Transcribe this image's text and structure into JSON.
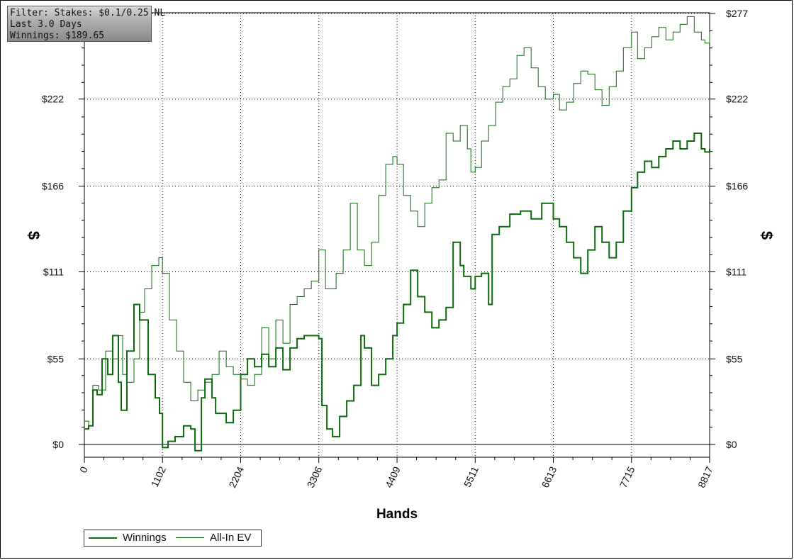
{
  "info_box": {
    "line1": "Filter: Stakes: $0.1/0.25 NL",
    "line2": "Last 3.0 Days",
    "line3": "Winnings: $189.65"
  },
  "chart_data": {
    "type": "line",
    "xlabel": "Hands",
    "ylabel": "$",
    "ylabel_right": "$",
    "xlim": [
      0,
      8817
    ],
    "ylim": [
      -8,
      277
    ],
    "x_ticks": [
      "0",
      "1102",
      "2204",
      "3306",
      "4409",
      "5511",
      "6613",
      "7715",
      "8817"
    ],
    "y_ticks": [
      "$0",
      "$55",
      "$111",
      "$166",
      "$222",
      "$277"
    ],
    "y_tick_values": [
      0,
      55,
      111,
      166,
      222,
      277
    ],
    "x_tick_values": [
      0,
      1102,
      2204,
      3306,
      4409,
      5511,
      6613,
      7715,
      8817
    ],
    "grid": true,
    "legend_position": "bottom-left",
    "series": [
      {
        "name": "Winnings",
        "color": "#0b6b0b",
        "x": [
          0,
          60,
          120,
          180,
          250,
          330,
          400,
          480,
          520,
          600,
          700,
          780,
          900,
          1000,
          1060,
          1102,
          1180,
          1280,
          1400,
          1500,
          1560,
          1650,
          1700,
          1800,
          1850,
          2000,
          2100,
          2204,
          2300,
          2400,
          2500,
          2600,
          2700,
          2800,
          2900,
          3000,
          3100,
          3200,
          3306,
          3350,
          3420,
          3500,
          3600,
          3700,
          3800,
          3900,
          3950,
          4050,
          4150,
          4250,
          4350,
          4409,
          4500,
          4600,
          4700,
          4800,
          4900,
          5000,
          5100,
          5200,
          5300,
          5350,
          5450,
          5511,
          5600,
          5700,
          5750,
          5850,
          6000,
          6150,
          6300,
          6450,
          6613,
          6700,
          6800,
          6900,
          7000,
          7100,
          7200,
          7300,
          7400,
          7500,
          7600,
          7715,
          7800,
          7900,
          8000,
          8100,
          8200,
          8300,
          8400,
          8500,
          8600,
          8700,
          8750,
          8817
        ],
        "y": [
          10,
          12,
          35,
          32,
          55,
          45,
          70,
          40,
          22,
          60,
          90,
          80,
          45,
          30,
          20,
          -2,
          2,
          5,
          12,
          10,
          -4,
          30,
          42,
          30,
          20,
          14,
          22,
          45,
          55,
          50,
          58,
          50,
          62,
          48,
          62,
          68,
          70,
          70,
          68,
          25,
          10,
          5,
          18,
          28,
          38,
          70,
          62,
          38,
          45,
          55,
          70,
          78,
          90,
          112,
          95,
          85,
          75,
          80,
          88,
          130,
          115,
          108,
          100,
          108,
          110,
          90,
          135,
          140,
          148,
          150,
          145,
          155,
          145,
          140,
          130,
          120,
          110,
          125,
          140,
          130,
          120,
          130,
          150,
          165,
          175,
          182,
          178,
          185,
          190,
          195,
          190,
          195,
          200,
          190,
          188,
          190
        ]
      },
      {
        "name": "All-In EV",
        "color": "#0b6b0b",
        "x": [
          0,
          60,
          120,
          200,
          300,
          400,
          480,
          540,
          600,
          700,
          780,
          850,
          950,
          1050,
          1102,
          1200,
          1300,
          1400,
          1500,
          1600,
          1700,
          1800,
          1900,
          2000,
          2100,
          2204,
          2300,
          2400,
          2500,
          2600,
          2700,
          2800,
          2900,
          3000,
          3100,
          3200,
          3306,
          3400,
          3450,
          3550,
          3650,
          3750,
          3850,
          3950,
          4050,
          4150,
          4250,
          4350,
          4409,
          4500,
          4600,
          4700,
          4800,
          4900,
          5000,
          5100,
          5200,
          5300,
          5400,
          5450,
          5511,
          5600,
          5700,
          5800,
          5900,
          6000,
          6100,
          6200,
          6300,
          6400,
          6500,
          6613,
          6700,
          6800,
          6900,
          7000,
          7100,
          7200,
          7300,
          7400,
          7500,
          7600,
          7715,
          7800,
          7900,
          8000,
          8100,
          8200,
          8300,
          8400,
          8500,
          8600,
          8700,
          8750,
          8817
        ],
        "y": [
          15,
          12,
          38,
          35,
          60,
          55,
          70,
          45,
          40,
          55,
          85,
          100,
          115,
          120,
          110,
          80,
          60,
          40,
          28,
          35,
          40,
          45,
          60,
          50,
          45,
          42,
          38,
          45,
          75,
          55,
          80,
          65,
          90,
          95,
          100,
          105,
          125,
          100,
          100,
          110,
          125,
          155,
          125,
          115,
          130,
          160,
          180,
          185,
          180,
          160,
          150,
          140,
          155,
          165,
          170,
          200,
          195,
          205,
          190,
          175,
          178,
          195,
          205,
          220,
          230,
          235,
          250,
          255,
          242,
          230,
          222,
          225,
          215,
          220,
          232,
          240,
          238,
          228,
          218,
          230,
          240,
          255,
          265,
          248,
          255,
          262,
          268,
          260,
          265,
          270,
          275,
          265,
          260,
          258,
          265
        ]
      }
    ]
  },
  "legend": {
    "winnings_label": "Winnings",
    "allin_label": "All-In EV"
  }
}
